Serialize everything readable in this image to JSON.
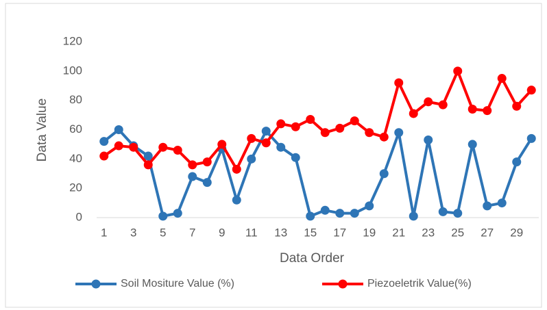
{
  "chart_data": {
    "type": "line",
    "categories": [
      "1",
      null,
      "3",
      null,
      "5",
      null,
      "7",
      null,
      "9",
      null,
      "11",
      null,
      "13",
      null,
      "15",
      null,
      "17",
      null,
      "19",
      null,
      "21",
      null,
      "23",
      null,
      "25",
      null,
      "27",
      null,
      "29",
      null
    ],
    "series": [
      {
        "name": "Soil Mositure Value (%)",
        "color": "#2e75b6",
        "values": [
          52,
          60,
          49,
          42,
          1,
          3,
          28,
          24,
          47,
          12,
          40,
          59,
          48,
          41,
          1,
          5,
          3,
          3,
          8,
          30,
          58,
          1,
          53,
          4,
          3,
          50,
          8,
          10,
          38,
          54
        ]
      },
      {
        "name": "Piezoeletrik Value(%)",
        "color": "#ff0000",
        "values": [
          42,
          49,
          48,
          36,
          48,
          46,
          36,
          38,
          50,
          33,
          54,
          51,
          64,
          62,
          67,
          58,
          61,
          66,
          58,
          55,
          92,
          71,
          79,
          77,
          100,
          74,
          73,
          95,
          76,
          87
        ]
      }
    ],
    "x_label": "Data Order",
    "y_label": "Data Value",
    "ylim": [
      0,
      120
    ],
    "yticks": [
      0,
      20,
      40,
      60,
      80,
      100,
      120
    ],
    "grid": false,
    "legend": "bottom"
  }
}
